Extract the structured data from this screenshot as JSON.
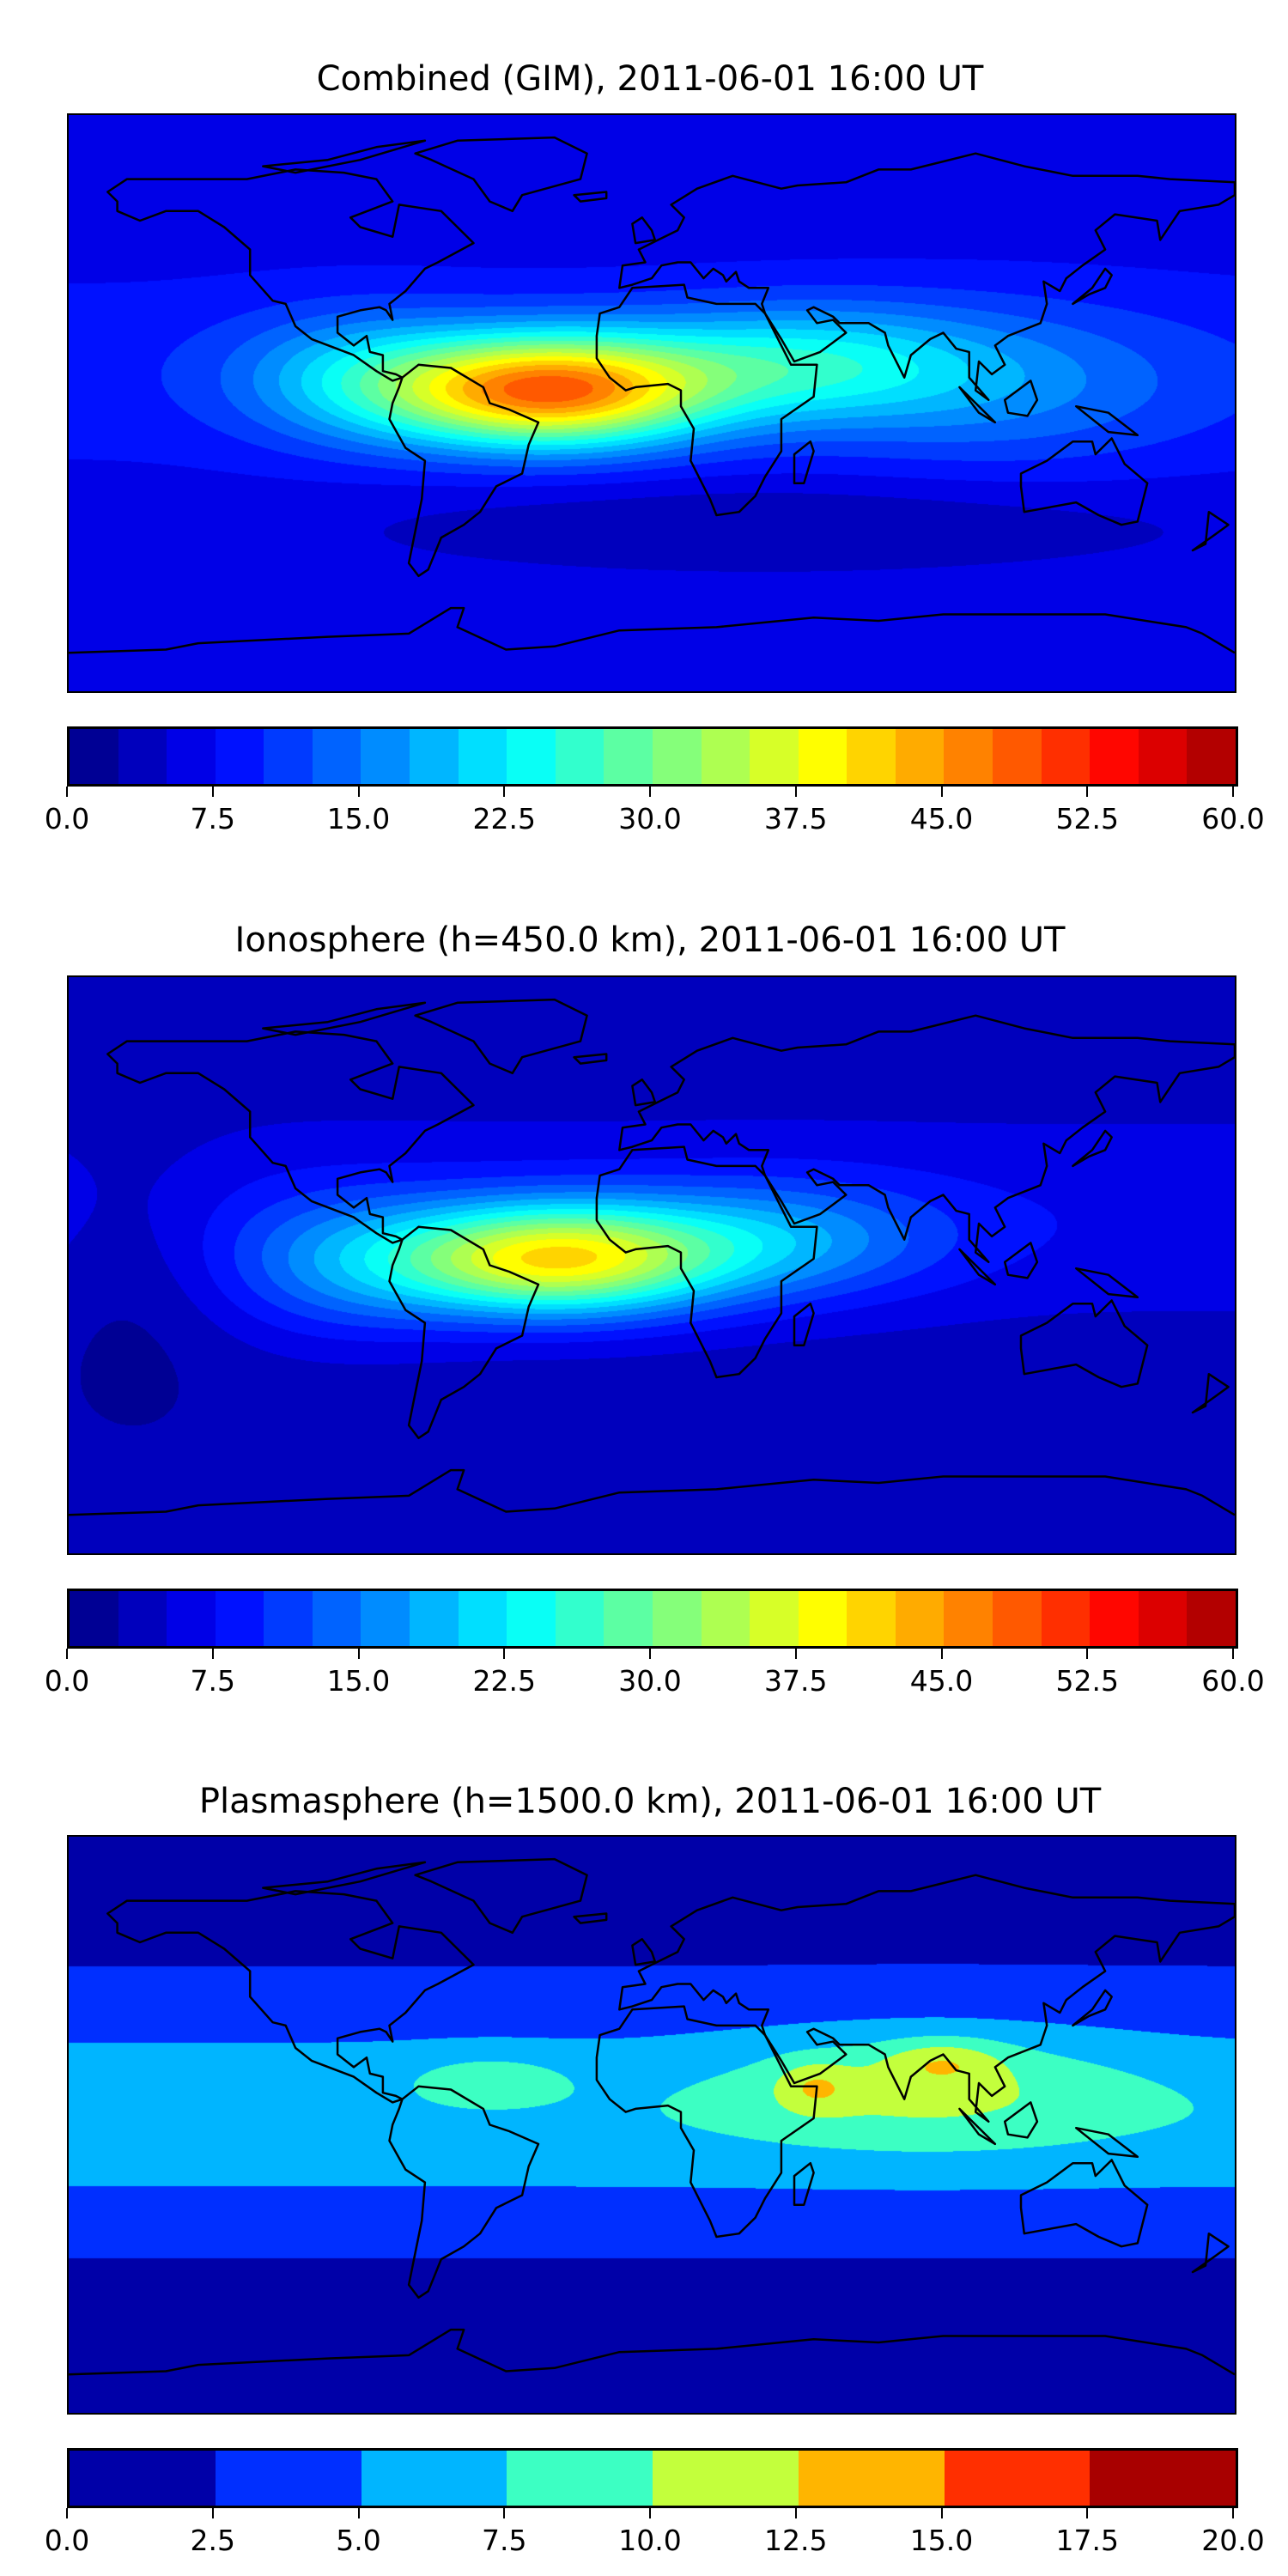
{
  "chart_data": [
    {
      "type": "heatmap",
      "title": "Combined (GIM), 2011-06-01 16:00 UT",
      "projection": "equirectangular world map with coastlines",
      "colormap": "jet",
      "range": [
        0,
        60
      ],
      "level_step": 2.5,
      "colorbar_ticks": [
        "0.0",
        "7.5",
        "15.0",
        "22.5",
        "30.0",
        "37.5",
        "45.0",
        "52.5",
        "60.0"
      ],
      "peak_value_approx": 45,
      "peak_location": "tropical South America / Atlantic (lon -40 to -20, lat ~5)",
      "background_min_approx": 2.5
    },
    {
      "type": "heatmap",
      "title": "Ionosphere  (h=450.0 km), 2011-06-01 16:00 UT",
      "projection": "equirectangular world map with coastlines",
      "colormap": "jet",
      "range": [
        0,
        60
      ],
      "level_step": 2.5,
      "colorbar_ticks": [
        "0.0",
        "7.5",
        "15.0",
        "22.5",
        "30.0",
        "37.5",
        "45.0",
        "52.5",
        "60.0"
      ],
      "peak_value_approx": 40,
      "peak_location": "tropical South America / Atlantic (lon -35, lat ~0)",
      "background_min_approx": 0
    },
    {
      "type": "heatmap",
      "title": "Plasmasphere (h=1500.0 km), 2011-06-01 16:00 UT",
      "projection": "equirectangular world map with coastlines",
      "colormap": "jet",
      "range": [
        0,
        20
      ],
      "level_step": 2.5,
      "colorbar_ticks": [
        "0.0",
        "2.5",
        "5.0",
        "7.5",
        "10.0",
        "12.5",
        "15.0",
        "17.5",
        "20.0"
      ],
      "peak_value_approx": 12.5,
      "peak_location": "Arabian Sea / India (lon 45-100, lat 10-25)",
      "background_min_approx": 0
    }
  ]
}
